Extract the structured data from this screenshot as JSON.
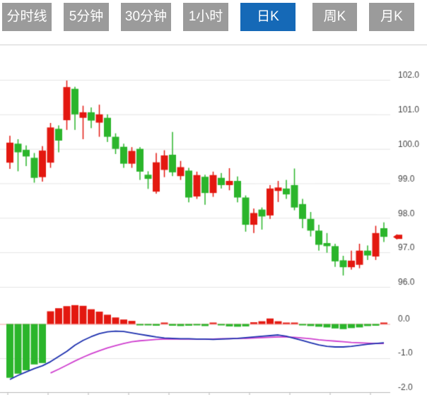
{
  "tabs": [
    {
      "label": "分时线",
      "active": false
    },
    {
      "label": "5分钟",
      "active": false
    },
    {
      "label": "30分钟",
      "active": false
    },
    {
      "label": "1小时",
      "active": false
    },
    {
      "label": "日K",
      "active": true
    },
    {
      "label": "周K",
      "active": false
    },
    {
      "label": "月K",
      "active": false
    }
  ],
  "colors": {
    "up": "#e31810",
    "down": "#2bb52b",
    "dif_line": "#1c2fae",
    "dea_line": "#cf3fcf",
    "zero_line": "#f2a2a2",
    "grid": "#e4e4e4",
    "divider": "#cfcfcf",
    "axis_line": "#b8b8b8",
    "axis_text": "#444444",
    "tab_bg": "#9b9b9b",
    "tab_active_bg": "#1569b7",
    "tab_text": "#ffffff",
    "price_marker": "#e31810"
  },
  "chart_data": {
    "type": "candlestick+macd",
    "main": {
      "price_ticks": [
        102.0,
        101.0,
        100.0,
        99.0,
        98.0,
        97.0,
        96.0
      ],
      "ylim": [
        95.8,
        102.2
      ],
      "grid": true,
      "last_price_marker": 97.45,
      "candles": [
        {
          "o": 99.6,
          "h": 100.38,
          "l": 99.42,
          "c": 100.18
        },
        {
          "o": 100.15,
          "h": 100.28,
          "l": 99.35,
          "c": 99.9
        },
        {
          "o": 99.97,
          "h": 100.1,
          "l": 99.5,
          "c": 99.78
        },
        {
          "o": 99.74,
          "h": 99.88,
          "l": 99.02,
          "c": 99.16
        },
        {
          "o": 99.18,
          "h": 100.08,
          "l": 99.05,
          "c": 99.95
        },
        {
          "o": 99.6,
          "h": 100.75,
          "l": 99.45,
          "c": 100.62
        },
        {
          "o": 100.58,
          "h": 100.68,
          "l": 99.9,
          "c": 100.24
        },
        {
          "o": 100.83,
          "h": 101.98,
          "l": 100.55,
          "c": 101.79
        },
        {
          "o": 101.74,
          "h": 101.8,
          "l": 100.55,
          "c": 101.0
        },
        {
          "o": 100.9,
          "h": 101.25,
          "l": 100.28,
          "c": 101.06
        },
        {
          "o": 101.06,
          "h": 101.2,
          "l": 100.6,
          "c": 100.82
        },
        {
          "o": 100.76,
          "h": 101.28,
          "l": 100.35,
          "c": 101.0
        },
        {
          "o": 100.9,
          "h": 101.0,
          "l": 100.2,
          "c": 100.35
        },
        {
          "o": 100.35,
          "h": 100.45,
          "l": 99.85,
          "c": 100.0
        },
        {
          "o": 100.06,
          "h": 100.15,
          "l": 99.45,
          "c": 99.57
        },
        {
          "o": 99.57,
          "h": 100.05,
          "l": 99.45,
          "c": 99.94
        },
        {
          "o": 100.0,
          "h": 100.05,
          "l": 99.1,
          "c": 99.34
        },
        {
          "o": 99.25,
          "h": 99.35,
          "l": 98.84,
          "c": 99.13
        },
        {
          "o": 98.76,
          "h": 99.88,
          "l": 98.7,
          "c": 99.61
        },
        {
          "o": 99.39,
          "h": 99.96,
          "l": 99.18,
          "c": 99.81
        },
        {
          "o": 99.83,
          "h": 100.49,
          "l": 99.21,
          "c": 99.32
        },
        {
          "o": 99.21,
          "h": 99.65,
          "l": 99.1,
          "c": 99.47
        },
        {
          "o": 99.37,
          "h": 99.45,
          "l": 98.45,
          "c": 98.59
        },
        {
          "o": 98.62,
          "h": 99.34,
          "l": 98.55,
          "c": 99.24
        },
        {
          "o": 99.19,
          "h": 99.25,
          "l": 98.38,
          "c": 98.72
        },
        {
          "o": 98.72,
          "h": 99.34,
          "l": 98.61,
          "c": 99.24
        },
        {
          "o": 99.16,
          "h": 99.3,
          "l": 98.85,
          "c": 98.95
        },
        {
          "o": 98.95,
          "h": 99.44,
          "l": 98.8,
          "c": 99.07
        },
        {
          "o": 99.07,
          "h": 99.2,
          "l": 98.45,
          "c": 98.59
        },
        {
          "o": 98.59,
          "h": 98.65,
          "l": 97.6,
          "c": 97.8
        },
        {
          "o": 97.8,
          "h": 98.27,
          "l": 97.56,
          "c": 98.14
        },
        {
          "o": 98.24,
          "h": 98.3,
          "l": 97.66,
          "c": 98.04
        },
        {
          "o": 98.07,
          "h": 98.95,
          "l": 97.97,
          "c": 98.85
        },
        {
          "o": 98.78,
          "h": 99.07,
          "l": 98.46,
          "c": 98.88
        },
        {
          "o": 98.85,
          "h": 99.1,
          "l": 98.55,
          "c": 98.68
        },
        {
          "o": 98.95,
          "h": 99.43,
          "l": 98.22,
          "c": 98.3
        },
        {
          "o": 98.4,
          "h": 98.55,
          "l": 97.7,
          "c": 97.97
        },
        {
          "o": 97.97,
          "h": 98.17,
          "l": 97.46,
          "c": 97.63
        },
        {
          "o": 97.63,
          "h": 97.8,
          "l": 97.05,
          "c": 97.22
        },
        {
          "o": 97.27,
          "h": 97.56,
          "l": 96.99,
          "c": 97.18
        },
        {
          "o": 97.18,
          "h": 97.25,
          "l": 96.58,
          "c": 96.74
        },
        {
          "o": 96.77,
          "h": 96.9,
          "l": 96.33,
          "c": 96.57
        },
        {
          "o": 96.57,
          "h": 97.05,
          "l": 96.5,
          "c": 96.76
        },
        {
          "o": 96.64,
          "h": 97.25,
          "l": 96.54,
          "c": 97.05
        },
        {
          "o": 97.05,
          "h": 97.2,
          "l": 96.78,
          "c": 96.91
        },
        {
          "o": 96.88,
          "h": 97.77,
          "l": 96.78,
          "c": 97.56
        },
        {
          "o": 97.7,
          "h": 97.87,
          "l": 97.3,
          "c": 97.45
        }
      ]
    },
    "macd": {
      "value_ticks": [
        0.0,
        -1.0,
        -2.0
      ],
      "ylim": [
        -2.1,
        0.7
      ],
      "histogram": [
        -1.57,
        -1.45,
        -1.35,
        -1.18,
        -1.14,
        0.37,
        0.46,
        0.52,
        0.55,
        0.53,
        0.43,
        0.36,
        0.27,
        0.19,
        0.13,
        0.09,
        -0.03,
        -0.04,
        -0.05,
        0.03,
        -0.05,
        -0.06,
        -0.05,
        -0.04,
        -0.06,
        0.02,
        -0.04,
        -0.07,
        -0.08,
        -0.07,
        0.05,
        0.08,
        0.16,
        0.08,
        0.04,
        0.03,
        -0.04,
        -0.06,
        -0.08,
        -0.1,
        -0.13,
        -0.15,
        -0.12,
        -0.1,
        -0.06,
        -0.05,
        0.04
      ],
      "dif": [
        -1.62,
        -1.5,
        -1.4,
        -1.3,
        -1.22,
        -1.1,
        -0.95,
        -0.8,
        -0.62,
        -0.48,
        -0.37,
        -0.28,
        -0.23,
        -0.21,
        -0.22,
        -0.26,
        -0.3,
        -0.34,
        -0.38,
        -0.41,
        -0.42,
        -0.43,
        -0.43,
        -0.44,
        -0.44,
        -0.45,
        -0.44,
        -0.43,
        -0.42,
        -0.4,
        -0.38,
        -0.36,
        -0.34,
        -0.32,
        -0.36,
        -0.42,
        -0.48,
        -0.55,
        -0.61,
        -0.65,
        -0.67,
        -0.67,
        -0.65,
        -0.62,
        -0.59,
        -0.57,
        -0.55
      ],
      "dea": [
        null,
        null,
        null,
        null,
        null,
        -1.43,
        -1.32,
        -1.2,
        -1.08,
        -0.97,
        -0.87,
        -0.78,
        -0.7,
        -0.63,
        -0.57,
        -0.52,
        -0.49,
        -0.47,
        -0.45,
        -0.44,
        -0.44,
        -0.44,
        -0.44,
        -0.44,
        -0.44,
        -0.44,
        -0.43,
        -0.43,
        -0.42,
        -0.42,
        -0.41,
        -0.4,
        -0.39,
        -0.38,
        -0.38,
        -0.39,
        -0.41,
        -0.43,
        -0.46,
        -0.48,
        -0.5,
        -0.52,
        -0.54,
        -0.55,
        -0.56,
        -0.57,
        -0.57
      ]
    }
  }
}
